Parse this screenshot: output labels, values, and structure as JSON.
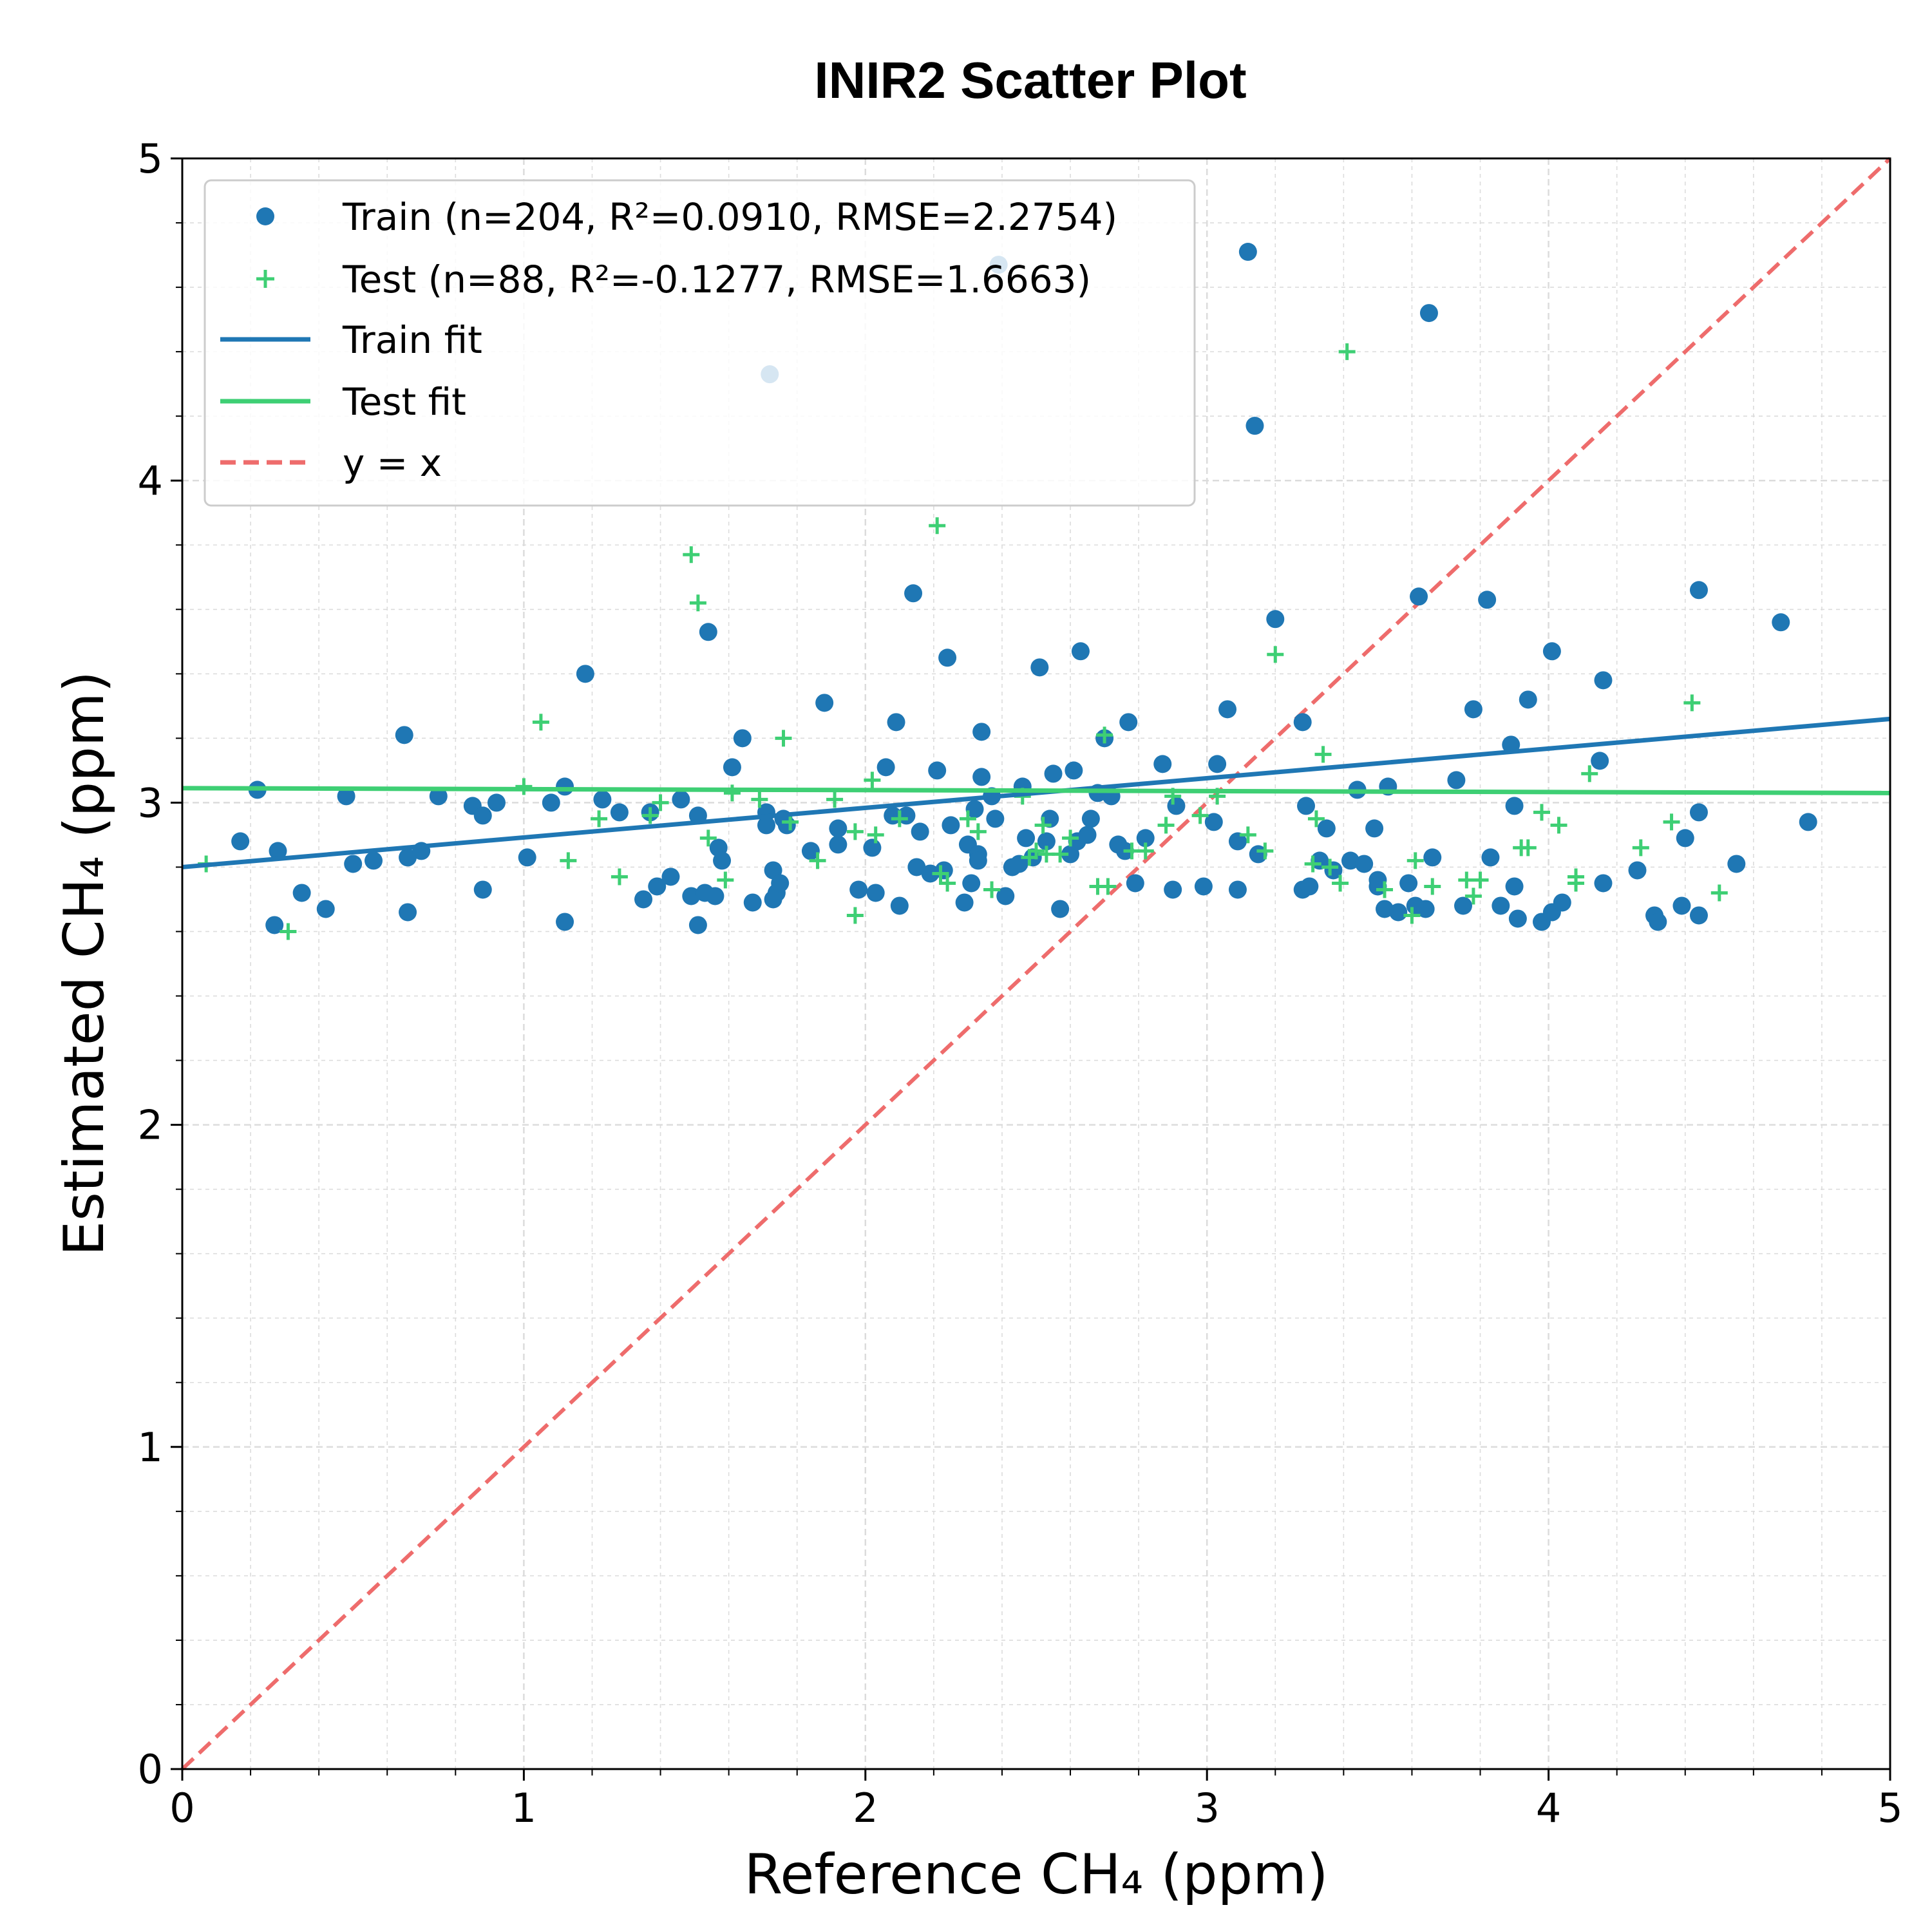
{
  "chart_data": {
    "type": "scatter",
    "title": "INIR2 Scatter Plot",
    "xlabel": "Reference CH₄ (ppm)",
    "ylabel": "Estimated CH₄ (ppm)",
    "xlim": [
      0,
      5
    ],
    "ylim": [
      0,
      5
    ],
    "x_ticks": [
      "0",
      "1",
      "2",
      "3",
      "4",
      "5"
    ],
    "y_ticks": [
      "0",
      "1",
      "2",
      "3",
      "4",
      "5"
    ],
    "grid": true,
    "minor_grid": true,
    "legend_placement": "upper-left",
    "colors": {
      "train": "#1f77b4",
      "test": "#3ecf74",
      "identity": "#ee6c6c"
    },
    "series": [
      {
        "name": "Train (n=204, R²=0.0910, RMSE=2.2754)",
        "kind": "points",
        "marker": "circle",
        "points": [
          [
            0.17,
            2.88
          ],
          [
            0.22,
            3.04
          ],
          [
            0.28,
            2.85
          ],
          [
            0.27,
            2.62
          ],
          [
            0.35,
            2.72
          ],
          [
            0.42,
            2.67
          ],
          [
            0.48,
            3.02
          ],
          [
            0.5,
            2.81
          ],
          [
            0.56,
            2.82
          ],
          [
            0.65,
            3.21
          ],
          [
            0.66,
            2.83
          ],
          [
            0.66,
            2.66
          ],
          [
            0.7,
            2.85
          ],
          [
            0.75,
            3.02
          ],
          [
            0.85,
            2.99
          ],
          [
            0.88,
            2.96
          ],
          [
            0.88,
            2.73
          ],
          [
            0.92,
            3.0
          ],
          [
            1.01,
            2.83
          ],
          [
            1.08,
            3.0
          ],
          [
            1.12,
            3.05
          ],
          [
            1.12,
            2.63
          ],
          [
            1.18,
            3.4
          ],
          [
            1.23,
            3.01
          ],
          [
            1.28,
            2.97
          ],
          [
            1.35,
            2.7
          ],
          [
            1.37,
            2.97
          ],
          [
            1.39,
            2.74
          ],
          [
            1.43,
            2.77
          ],
          [
            1.46,
            3.01
          ],
          [
            1.49,
            2.71
          ],
          [
            1.51,
            2.96
          ],
          [
            1.51,
            2.62
          ],
          [
            1.53,
            2.72
          ],
          [
            1.54,
            3.53
          ],
          [
            1.56,
            2.71
          ],
          [
            1.57,
            2.86
          ],
          [
            1.58,
            2.82
          ],
          [
            1.61,
            3.11
          ],
          [
            1.64,
            3.2
          ],
          [
            1.67,
            2.69
          ],
          [
            1.71,
            2.97
          ],
          [
            1.71,
            2.93
          ],
          [
            1.72,
            4.33
          ],
          [
            1.73,
            2.79
          ],
          [
            1.73,
            2.7
          ],
          [
            1.74,
            2.72
          ],
          [
            1.75,
            2.75
          ],
          [
            1.76,
            2.95
          ],
          [
            1.77,
            2.93
          ],
          [
            1.84,
            2.85
          ],
          [
            1.88,
            3.31
          ],
          [
            1.92,
            2.87
          ],
          [
            1.92,
            2.92
          ],
          [
            1.98,
            2.73
          ],
          [
            2.02,
            2.86
          ],
          [
            2.03,
            2.72
          ],
          [
            2.06,
            3.11
          ],
          [
            2.08,
            2.96
          ],
          [
            2.09,
            3.25
          ],
          [
            2.1,
            2.68
          ],
          [
            2.12,
            2.96
          ],
          [
            2.14,
            3.65
          ],
          [
            2.15,
            2.8
          ],
          [
            2.16,
            2.91
          ],
          [
            2.19,
            2.78
          ],
          [
            2.21,
            3.1
          ],
          [
            2.23,
            2.79
          ],
          [
            2.24,
            3.45
          ],
          [
            2.25,
            2.93
          ],
          [
            2.29,
            2.69
          ],
          [
            2.3,
            2.87
          ],
          [
            2.31,
            2.75
          ],
          [
            2.32,
            2.98
          ],
          [
            2.33,
            2.84
          ],
          [
            2.33,
            2.82
          ],
          [
            2.34,
            3.22
          ],
          [
            2.34,
            3.08
          ],
          [
            2.37,
            3.02
          ],
          [
            2.38,
            2.95
          ],
          [
            2.39,
            4.67
          ],
          [
            2.41,
            2.71
          ],
          [
            2.43,
            2.8
          ],
          [
            2.45,
            2.81
          ],
          [
            2.46,
            3.05
          ],
          [
            2.47,
            2.89
          ],
          [
            2.49,
            2.83
          ],
          [
            2.51,
            3.42
          ],
          [
            2.53,
            2.88
          ],
          [
            2.54,
            2.95
          ],
          [
            2.55,
            3.09
          ],
          [
            2.57,
            2.67
          ],
          [
            2.6,
            2.84
          ],
          [
            2.61,
            3.1
          ],
          [
            2.62,
            2.88
          ],
          [
            2.63,
            3.47
          ],
          [
            2.65,
            2.9
          ],
          [
            2.66,
            2.95
          ],
          [
            2.68,
            3.03
          ],
          [
            2.7,
            3.2
          ],
          [
            2.72,
            3.02
          ],
          [
            2.74,
            2.87
          ],
          [
            2.76,
            2.85
          ],
          [
            2.77,
            3.25
          ],
          [
            2.79,
            2.75
          ],
          [
            2.82,
            2.89
          ],
          [
            2.87,
            3.12
          ],
          [
            2.9,
            2.73
          ],
          [
            2.91,
            2.99
          ],
          [
            2.99,
            2.74
          ],
          [
            3.02,
            2.94
          ],
          [
            3.03,
            3.12
          ],
          [
            3.06,
            3.29
          ],
          [
            3.09,
            2.88
          ],
          [
            3.09,
            2.73
          ],
          [
            3.12,
            4.71
          ],
          [
            3.14,
            4.17
          ],
          [
            3.15,
            2.84
          ],
          [
            3.2,
            3.57
          ],
          [
            3.28,
            3.25
          ],
          [
            3.28,
            2.73
          ],
          [
            3.29,
            2.99
          ],
          [
            3.3,
            2.74
          ],
          [
            3.33,
            2.82
          ],
          [
            3.35,
            2.92
          ],
          [
            3.37,
            2.79
          ],
          [
            3.42,
            2.82
          ],
          [
            3.44,
            3.04
          ],
          [
            3.46,
            2.81
          ],
          [
            3.49,
            2.92
          ],
          [
            3.5,
            2.76
          ],
          [
            3.5,
            2.74
          ],
          [
            3.52,
            2.67
          ],
          [
            3.53,
            3.05
          ],
          [
            3.56,
            2.66
          ],
          [
            3.59,
            2.75
          ],
          [
            3.61,
            2.68
          ],
          [
            3.62,
            3.64
          ],
          [
            3.64,
            2.67
          ],
          [
            3.65,
            4.52
          ],
          [
            3.66,
            2.83
          ],
          [
            3.73,
            3.07
          ],
          [
            3.75,
            2.68
          ],
          [
            3.78,
            3.29
          ],
          [
            3.82,
            3.63
          ],
          [
            3.83,
            2.83
          ],
          [
            3.86,
            2.68
          ],
          [
            3.89,
            3.18
          ],
          [
            3.9,
            2.99
          ],
          [
            3.9,
            2.74
          ],
          [
            3.91,
            2.64
          ],
          [
            3.94,
            3.32
          ],
          [
            3.98,
            2.63
          ],
          [
            4.01,
            3.47
          ],
          [
            4.01,
            2.66
          ],
          [
            4.04,
            2.69
          ],
          [
            4.15,
            3.13
          ],
          [
            4.16,
            3.38
          ],
          [
            4.16,
            2.75
          ],
          [
            4.26,
            2.79
          ],
          [
            4.31,
            2.65
          ],
          [
            4.32,
            2.63
          ],
          [
            4.39,
            2.68
          ],
          [
            4.4,
            2.89
          ],
          [
            4.44,
            3.66
          ],
          [
            4.44,
            2.97
          ],
          [
            4.44,
            2.65
          ],
          [
            4.55,
            2.81
          ],
          [
            4.68,
            3.56
          ],
          [
            4.76,
            2.94
          ]
        ]
      },
      {
        "name": "Test (n=88, R²=-0.1277, RMSE=1.6663)",
        "kind": "points",
        "marker": "plus",
        "points": [
          [
            0.07,
            2.81
          ],
          [
            0.31,
            2.6
          ],
          [
            1.0,
            3.05
          ],
          [
            1.05,
            3.25
          ],
          [
            1.13,
            2.82
          ],
          [
            1.22,
            2.95
          ],
          [
            1.28,
            2.77
          ],
          [
            1.37,
            2.96
          ],
          [
            1.4,
            3.0
          ],
          [
            1.49,
            3.77
          ],
          [
            1.51,
            3.62
          ],
          [
            1.54,
            2.89
          ],
          [
            1.59,
            2.76
          ],
          [
            1.61,
            3.03
          ],
          [
            1.69,
            3.01
          ],
          [
            1.76,
            3.2
          ],
          [
            1.78,
            2.94
          ],
          [
            1.86,
            2.82
          ],
          [
            1.91,
            3.01
          ],
          [
            1.97,
            2.65
          ],
          [
            1.97,
            2.91
          ],
          [
            2.02,
            3.07
          ],
          [
            2.03,
            2.9
          ],
          [
            2.1,
            2.95
          ],
          [
            2.21,
            3.86
          ],
          [
            2.22,
            2.78
          ],
          [
            2.24,
            2.75
          ],
          [
            2.3,
            2.95
          ],
          [
            2.33,
            2.91
          ],
          [
            2.37,
            2.73
          ],
          [
            2.46,
            3.02
          ],
          [
            2.48,
            2.83
          ],
          [
            2.5,
            2.85
          ],
          [
            2.52,
            2.93
          ],
          [
            2.53,
            2.84
          ],
          [
            2.57,
            2.84
          ],
          [
            2.6,
            2.89
          ],
          [
            2.68,
            2.74
          ],
          [
            2.7,
            3.21
          ],
          [
            2.71,
            2.74
          ],
          [
            2.78,
            2.85
          ],
          [
            2.82,
            2.85
          ],
          [
            2.88,
            2.93
          ],
          [
            2.9,
            3.02
          ],
          [
            2.98,
            2.96
          ],
          [
            3.03,
            3.02
          ],
          [
            3.12,
            2.9
          ],
          [
            3.17,
            2.85
          ],
          [
            3.2,
            3.46
          ],
          [
            3.31,
            2.81
          ],
          [
            3.32,
            2.95
          ],
          [
            3.34,
            3.15
          ],
          [
            3.36,
            2.8
          ],
          [
            3.39,
            2.75
          ],
          [
            3.41,
            4.4
          ],
          [
            3.52,
            2.73
          ],
          [
            3.6,
            2.65
          ],
          [
            3.61,
            2.82
          ],
          [
            3.66,
            2.74
          ],
          [
            3.76,
            2.76
          ],
          [
            3.78,
            2.71
          ],
          [
            3.8,
            2.76
          ],
          [
            3.92,
            2.86
          ],
          [
            3.94,
            2.86
          ],
          [
            3.98,
            2.97
          ],
          [
            4.03,
            2.93
          ],
          [
            4.08,
            2.75
          ],
          [
            4.08,
            2.77
          ],
          [
            4.12,
            3.09
          ],
          [
            4.27,
            2.86
          ],
          [
            4.36,
            2.94
          ],
          [
            4.42,
            3.31
          ],
          [
            4.5,
            2.72
          ]
        ]
      },
      {
        "name": "Train fit",
        "kind": "line",
        "style": "solid",
        "points": [
          [
            0,
            2.8
          ],
          [
            5,
            3.26
          ]
        ]
      },
      {
        "name": "Test fit",
        "kind": "line",
        "style": "solid",
        "points": [
          [
            0,
            3.045
          ],
          [
            5,
            3.03
          ]
        ]
      },
      {
        "name": "y = x",
        "kind": "line",
        "style": "dashed",
        "points": [
          [
            0,
            0
          ],
          [
            5,
            5
          ]
        ]
      }
    ]
  }
}
